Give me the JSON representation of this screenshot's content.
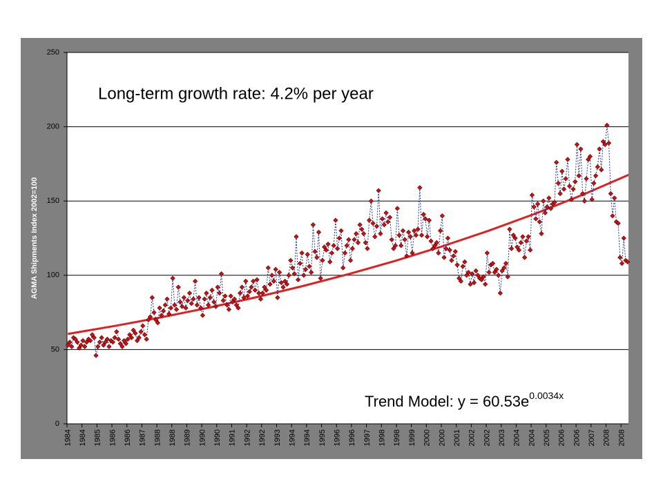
{
  "chart_data": {
    "type": "line",
    "y_axis_label": "AGMA Shipments Index 2002=100",
    "annotation": "Long-term growth rate: 4.2% per year",
    "trend_label": "Trend Model: y = 60.53e",
    "trend_label_exponent": "0.0034x",
    "ylim": [
      0,
      250
    ],
    "yticks": [
      0,
      50,
      100,
      150,
      200,
      250
    ],
    "grid": true,
    "categories": [
      "1984",
      null,
      null,
      null,
      null,
      null,
      null,
      null,
      "1984",
      null,
      null,
      null,
      null,
      null,
      null,
      null,
      "1985",
      null,
      null,
      null,
      null,
      null,
      null,
      null,
      "1986",
      null,
      null,
      null,
      null,
      null,
      null,
      null,
      "1986",
      null,
      null,
      null,
      null,
      null,
      null,
      null,
      "1987",
      null,
      null,
      null,
      null,
      null,
      null,
      null,
      "1988",
      null,
      null,
      null,
      null,
      null,
      null,
      null,
      "1988",
      null,
      null,
      null,
      null,
      null,
      null,
      null,
      "1989",
      null,
      null,
      null,
      null,
      null,
      null,
      null,
      "1990",
      null,
      null,
      null,
      null,
      null,
      null,
      null,
      "1990",
      null,
      null,
      null,
      null,
      null,
      null,
      null,
      "1991",
      null,
      null,
      null,
      null,
      null,
      null,
      null,
      "1992",
      null,
      null,
      null,
      null,
      null,
      null,
      null,
      "1992",
      null,
      null,
      null,
      null,
      null,
      null,
      null,
      "1993",
      null,
      null,
      null,
      null,
      null,
      null,
      null,
      "1994",
      null,
      null,
      null,
      null,
      null,
      null,
      null,
      "1994",
      null,
      null,
      null,
      null,
      null,
      null,
      null,
      "1995",
      null,
      null,
      null,
      null,
      null,
      null,
      null,
      "1996",
      null,
      null,
      null,
      null,
      null,
      null,
      null,
      "1996",
      null,
      null,
      null,
      null,
      null,
      null,
      null,
      "1997",
      null,
      null,
      null,
      null,
      null,
      null,
      null,
      "1998",
      null,
      null,
      null,
      null,
      null,
      null,
      null,
      "1998",
      null,
      null,
      null,
      null,
      null,
      null,
      null,
      "1999",
      null,
      null,
      null,
      null,
      null,
      null,
      null,
      "2000",
      null,
      null,
      null,
      null,
      null,
      null,
      null,
      "2000",
      null,
      null,
      null,
      null,
      null,
      null,
      null,
      "2001",
      null,
      null,
      null,
      null,
      null,
      null,
      null,
      "2002",
      null,
      null,
      null,
      null,
      null,
      null,
      null,
      "2002",
      null,
      null,
      null,
      null,
      null,
      null,
      null,
      "2003",
      null,
      null,
      null,
      null,
      null,
      null,
      null,
      "2004",
      null,
      null,
      null,
      null,
      null,
      null,
      null,
      "2004",
      null,
      null,
      null,
      null,
      null,
      null,
      null,
      "2005",
      null,
      null,
      null,
      null,
      null,
      null,
      null,
      "2006",
      null,
      null,
      null,
      null,
      null,
      null,
      null,
      "2006",
      null,
      null,
      null,
      null,
      null,
      null,
      null,
      "2007",
      null,
      null,
      null,
      null,
      null,
      null,
      null,
      "2008",
      null,
      null,
      null,
      null,
      null,
      null,
      null,
      "2008",
      null,
      null,
      null
    ],
    "series": [
      {
        "color": "#cc1111",
        "line_color": "#1a2f9e",
        "values": [
          53,
          55,
          52,
          58,
          57,
          55,
          51,
          53,
          56,
          52,
          55,
          57,
          56,
          60,
          58,
          46,
          52,
          55,
          58,
          53,
          55,
          57,
          52,
          56,
          55,
          58,
          62,
          57,
          54,
          52,
          56,
          54,
          57,
          60,
          58,
          63,
          61,
          56,
          58,
          62,
          66,
          60,
          57,
          70,
          72,
          85,
          75,
          70,
          68,
          78,
          73,
          76,
          80,
          84,
          74,
          78,
          98,
          80,
          77,
          92,
          82,
          79,
          85,
          78,
          83,
          88,
          81,
          84,
          96,
          80,
          85,
          78,
          73,
          84,
          88,
          80,
          85,
          90,
          82,
          79,
          92,
          88,
          101,
          83,
          86,
          80,
          77,
          86,
          82,
          84,
          80,
          78,
          88,
          92,
          85,
          96,
          86,
          89,
          92,
          96,
          90,
          97,
          88,
          84,
          88,
          92,
          90,
          105,
          94,
          100,
          96,
          104,
          85,
          102,
          95,
          92,
          96,
          94,
          100,
          110,
          105,
          101,
          126,
          97,
          108,
          115,
          100,
          104,
          114,
          106,
          102,
          134,
          116,
          112,
          129,
          98,
          110,
          119,
          117,
          121,
          109,
          115,
          120,
          137,
          118,
          125,
          130,
          105,
          115,
          120,
          124,
          110,
          118,
          124,
          128,
          122,
          134,
          131,
          128,
          122,
          118,
          137,
          150,
          135,
          126,
          133,
          157,
          128,
          138,
          134,
          142,
          136,
          139,
          124,
          118,
          120,
          145,
          127,
          120,
          130,
          124,
          113,
          129,
          126,
          115,
          130,
          127,
          131,
          159,
          127,
          141,
          138,
          126,
          137,
          123,
          118,
          120,
          122,
          115,
          130,
          140,
          112,
          118,
          125,
          117,
          110,
          113,
          116,
          107,
          98,
          96,
          106,
          109,
          100,
          102,
          94,
          101,
          95,
          103,
          100,
          98,
          97,
          99,
          94,
          115,
          102,
          107,
          108,
          102,
          104,
          100,
          88,
          103,
          105,
          108,
          99,
          131,
          118,
          127,
          125,
          119,
          117,
          122,
          126,
          112,
          123,
          126,
          117,
          154,
          146,
          138,
          148,
          136,
          128,
          150,
          142,
          146,
          152,
          145,
          148,
          149,
          176,
          162,
          155,
          170,
          158,
          165,
          178,
          160,
          151,
          158,
          163,
          188,
          167,
          185,
          155,
          150,
          165,
          178,
          180,
          151,
          162,
          167,
          173,
          185,
          171,
          190,
          188,
          201,
          189,
          155,
          140,
          152,
          136,
          135,
          112,
          108,
          125,
          110,
          109
        ]
      }
    ],
    "trend": {
      "color": "#e02020",
      "x": [
        0,
        25,
        50,
        75,
        100,
        125,
        150,
        175,
        200,
        225,
        250,
        275,
        300
      ],
      "values": [
        60.53,
        65.9,
        71.75,
        78.11,
        85.04,
        92.59,
        100.8,
        109.74,
        119.48,
        130.07,
        141.62,
        154.18,
        167.86
      ]
    }
  }
}
